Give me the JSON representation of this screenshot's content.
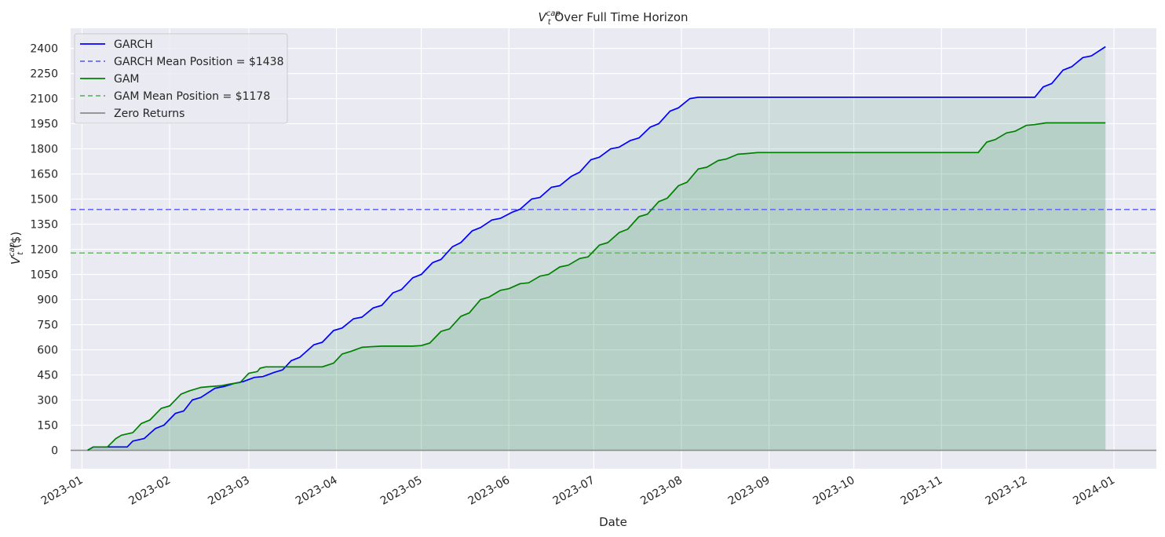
{
  "chart_data": {
    "type": "line",
    "title_main": "V",
    "title_sup": "cap",
    "title_sub": "t",
    "title_rest": " Over Full Time Horizon",
    "xlabel": "Date",
    "ylabel_main": "V",
    "ylabel_sup": "cap",
    "ylabel_sub": "t",
    "ylabel_rest": " ($)",
    "x_range": [
      "2022-12-28",
      "2024-01-16"
    ],
    "ylim": [
      -110,
      2520
    ],
    "yticks": [
      0,
      150,
      300,
      450,
      600,
      750,
      900,
      1050,
      1200,
      1350,
      1500,
      1650,
      1800,
      1950,
      2100,
      2250,
      2400
    ],
    "ytick_labels": [
      "0",
      "150",
      "300",
      "450",
      "600",
      "750",
      "900",
      "1050",
      "1200",
      "1350",
      "1500",
      "1650",
      "1800",
      "1950",
      "2100",
      "2250",
      "2400"
    ],
    "xticks": [
      "2023-01-01",
      "2023-02-01",
      "2023-03-01",
      "2023-04-01",
      "2023-05-01",
      "2023-06-01",
      "2023-07-01",
      "2023-08-01",
      "2023-09-01",
      "2023-10-01",
      "2023-11-01",
      "2023-12-01",
      "2024-01-01"
    ],
    "xtick_labels": [
      "2023-01",
      "2023-02",
      "2023-03",
      "2023-04",
      "2023-05",
      "2023-06",
      "2023-07",
      "2023-08",
      "2023-09",
      "2023-10",
      "2023-11",
      "2023-12",
      "2024-01"
    ],
    "grid": true,
    "legend_position": "top-left",
    "series": [
      {
        "name": "GARCH",
        "color": "#0000ff",
        "style": "solid",
        "fill": "#2e8b57",
        "points": [
          [
            "2023-01-03",
            0
          ],
          [
            "2023-01-05",
            20
          ],
          [
            "2023-01-10",
            20
          ],
          [
            "2023-01-17",
            20
          ],
          [
            "2023-01-19",
            55
          ],
          [
            "2023-01-23",
            70
          ],
          [
            "2023-01-27",
            130
          ],
          [
            "2023-01-30",
            150
          ],
          [
            "2023-02-03",
            220
          ],
          [
            "2023-02-06",
            235
          ],
          [
            "2023-02-09",
            300
          ],
          [
            "2023-02-12",
            315
          ],
          [
            "2023-02-17",
            370
          ],
          [
            "2023-02-20",
            380
          ],
          [
            "2023-02-24",
            400
          ],
          [
            "2023-02-27",
            410
          ],
          [
            "2023-03-03",
            435
          ],
          [
            "2023-03-06",
            440
          ],
          [
            "2023-03-10",
            465
          ],
          [
            "2023-03-13",
            480
          ],
          [
            "2023-03-16",
            535
          ],
          [
            "2023-03-19",
            555
          ],
          [
            "2023-03-24",
            630
          ],
          [
            "2023-03-27",
            645
          ],
          [
            "2023-03-31",
            715
          ],
          [
            "2023-04-03",
            730
          ],
          [
            "2023-04-07",
            785
          ],
          [
            "2023-04-10",
            795
          ],
          [
            "2023-04-14",
            850
          ],
          [
            "2023-04-17",
            865
          ],
          [
            "2023-04-21",
            940
          ],
          [
            "2023-04-24",
            960
          ],
          [
            "2023-04-28",
            1030
          ],
          [
            "2023-05-01",
            1050
          ],
          [
            "2023-05-05",
            1120
          ],
          [
            "2023-05-08",
            1140
          ],
          [
            "2023-05-12",
            1215
          ],
          [
            "2023-05-15",
            1240
          ],
          [
            "2023-05-19",
            1310
          ],
          [
            "2023-05-22",
            1330
          ],
          [
            "2023-05-26",
            1375
          ],
          [
            "2023-05-29",
            1385
          ],
          [
            "2023-06-02",
            1420
          ],
          [
            "2023-06-05",
            1440
          ],
          [
            "2023-06-09",
            1500
          ],
          [
            "2023-06-12",
            1510
          ],
          [
            "2023-06-16",
            1570
          ],
          [
            "2023-06-19",
            1580
          ],
          [
            "2023-06-23",
            1635
          ],
          [
            "2023-06-26",
            1660
          ],
          [
            "2023-06-30",
            1735
          ],
          [
            "2023-07-03",
            1750
          ],
          [
            "2023-07-07",
            1800
          ],
          [
            "2023-07-10",
            1810
          ],
          [
            "2023-07-14",
            1850
          ],
          [
            "2023-07-17",
            1865
          ],
          [
            "2023-07-21",
            1930
          ],
          [
            "2023-07-24",
            1950
          ],
          [
            "2023-07-28",
            2025
          ],
          [
            "2023-07-31",
            2045
          ],
          [
            "2023-08-04",
            2100
          ],
          [
            "2023-08-07",
            2108
          ],
          [
            "2023-08-31",
            2108
          ],
          [
            "2023-11-30",
            2108
          ],
          [
            "2023-12-04",
            2108
          ],
          [
            "2023-12-07",
            2170
          ],
          [
            "2023-12-10",
            2190
          ],
          [
            "2023-12-14",
            2270
          ],
          [
            "2023-12-17",
            2290
          ],
          [
            "2023-12-21",
            2345
          ],
          [
            "2023-12-24",
            2355
          ],
          [
            "2023-12-29",
            2410
          ]
        ]
      },
      {
        "name": "GAM",
        "color": "#008000",
        "style": "solid",
        "fill": "#2e8b57",
        "points": [
          [
            "2023-01-03",
            0
          ],
          [
            "2023-01-05",
            20
          ],
          [
            "2023-01-10",
            20
          ],
          [
            "2023-01-13",
            70
          ],
          [
            "2023-01-15",
            90
          ],
          [
            "2023-01-19",
            105
          ],
          [
            "2023-01-22",
            160
          ],
          [
            "2023-01-25",
            180
          ],
          [
            "2023-01-29",
            250
          ],
          [
            "2023-02-01",
            265
          ],
          [
            "2023-02-05",
            335
          ],
          [
            "2023-02-08",
            355
          ],
          [
            "2023-02-12",
            375
          ],
          [
            "2023-02-15",
            380
          ],
          [
            "2023-02-19",
            385
          ],
          [
            "2023-02-22",
            395
          ],
          [
            "2023-02-26",
            405
          ],
          [
            "2023-03-01",
            460
          ],
          [
            "2023-03-04",
            470
          ],
          [
            "2023-03-05",
            490
          ],
          [
            "2023-03-07",
            498
          ],
          [
            "2023-03-10",
            498
          ],
          [
            "2023-03-20",
            498
          ],
          [
            "2023-03-27",
            498
          ],
          [
            "2023-03-31",
            520
          ],
          [
            "2023-04-03",
            575
          ],
          [
            "2023-04-06",
            590
          ],
          [
            "2023-04-10",
            615
          ],
          [
            "2023-04-13",
            618
          ],
          [
            "2023-04-17",
            622
          ],
          [
            "2023-04-20",
            622
          ],
          [
            "2023-04-24",
            622
          ],
          [
            "2023-04-28",
            622
          ],
          [
            "2023-05-01",
            625
          ],
          [
            "2023-05-04",
            640
          ],
          [
            "2023-05-08",
            710
          ],
          [
            "2023-05-11",
            725
          ],
          [
            "2023-05-15",
            800
          ],
          [
            "2023-05-18",
            820
          ],
          [
            "2023-05-22",
            900
          ],
          [
            "2023-05-25",
            915
          ],
          [
            "2023-05-29",
            955
          ],
          [
            "2023-06-01",
            965
          ],
          [
            "2023-06-05",
            995
          ],
          [
            "2023-06-08",
            1000
          ],
          [
            "2023-06-12",
            1040
          ],
          [
            "2023-06-15",
            1050
          ],
          [
            "2023-06-19",
            1095
          ],
          [
            "2023-06-22",
            1105
          ],
          [
            "2023-06-26",
            1145
          ],
          [
            "2023-06-29",
            1155
          ],
          [
            "2023-07-03",
            1225
          ],
          [
            "2023-07-06",
            1240
          ],
          [
            "2023-07-10",
            1300
          ],
          [
            "2023-07-13",
            1320
          ],
          [
            "2023-07-17",
            1395
          ],
          [
            "2023-07-20",
            1410
          ],
          [
            "2023-07-24",
            1485
          ],
          [
            "2023-07-27",
            1505
          ],
          [
            "2023-07-31",
            1580
          ],
          [
            "2023-08-03",
            1600
          ],
          [
            "2023-08-07",
            1680
          ],
          [
            "2023-08-10",
            1690
          ],
          [
            "2023-08-14",
            1730
          ],
          [
            "2023-08-17",
            1740
          ],
          [
            "2023-08-21",
            1768
          ],
          [
            "2023-08-24",
            1772
          ],
          [
            "2023-08-28",
            1778
          ],
          [
            "2023-09-30",
            1778
          ],
          [
            "2023-10-31",
            1778
          ],
          [
            "2023-11-14",
            1778
          ],
          [
            "2023-11-17",
            1840
          ],
          [
            "2023-11-20",
            1855
          ],
          [
            "2023-11-24",
            1895
          ],
          [
            "2023-11-27",
            1905
          ],
          [
            "2023-12-01",
            1940
          ],
          [
            "2023-12-04",
            1945
          ],
          [
            "2023-12-08",
            1955
          ],
          [
            "2023-12-15",
            1955
          ],
          [
            "2023-12-29",
            1955
          ]
        ]
      }
    ],
    "reference_lines": [
      {
        "name": "GARCH Mean Position = $1438",
        "value": 1438,
        "color": "#6a6af5",
        "style": "dashed"
      },
      {
        "name": "GAM Mean Position = $1178",
        "value": 1178,
        "color": "#6bb56b",
        "style": "dashed"
      },
      {
        "name": "Zero Returns",
        "value": 0,
        "color": "#8c8c8c",
        "style": "solid"
      }
    ],
    "legend_entries": [
      {
        "label": "GARCH",
        "color": "#0000ff",
        "style": "solid"
      },
      {
        "label": "GARCH Mean Position = $1438",
        "color": "#6a6af5",
        "style": "dashed"
      },
      {
        "label": "GAM",
        "color": "#008000",
        "style": "solid"
      },
      {
        "label": "GAM Mean Position = $1178",
        "color": "#6bb56b",
        "style": "dashed"
      },
      {
        "label": "Zero Returns",
        "color": "#8c8c8c",
        "style": "solid"
      }
    ],
    "colors": {
      "plot_background": "#eaeaf2",
      "grid": "#ffffff"
    }
  }
}
